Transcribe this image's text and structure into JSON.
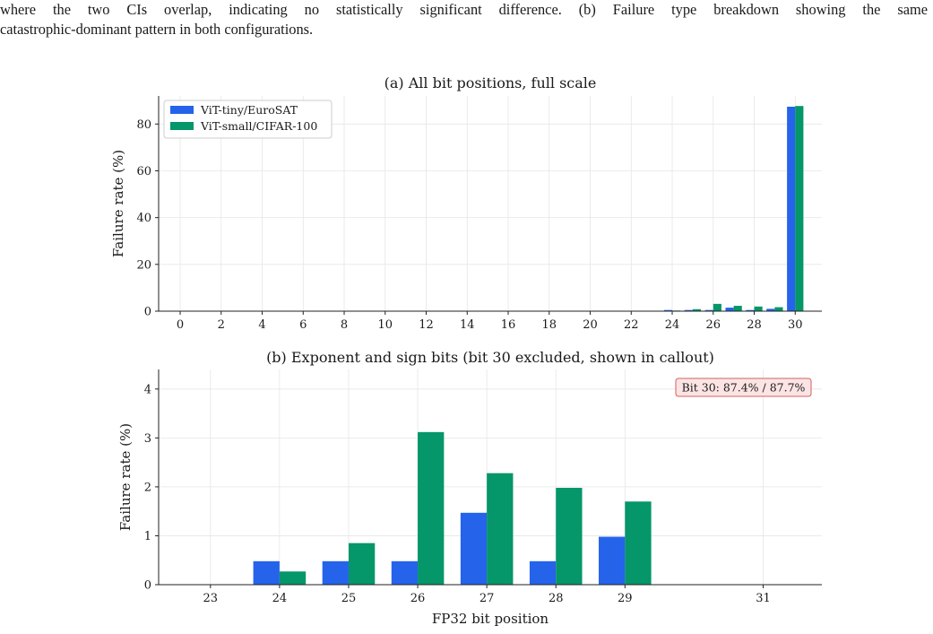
{
  "caption": {
    "line1": "where the two CIs overlap, indicating no statistically significant difference. (b) Failure type breakdown showing the same",
    "line2": "catastrophic-dominant pattern in both configurations."
  },
  "colors": {
    "series1": "#2563eb",
    "series2": "#059669",
    "callout_bg": "#fde4e4",
    "callout_border": "#d06060",
    "grid": "#e6e6e6"
  },
  "chart_data": [
    {
      "type": "bar",
      "title": "(a) All bit positions, full scale",
      "xlabel": "",
      "ylabel": "Failure rate (%)",
      "categories": [
        0,
        1,
        2,
        3,
        4,
        5,
        6,
        7,
        8,
        9,
        10,
        11,
        12,
        13,
        14,
        15,
        16,
        17,
        18,
        19,
        20,
        21,
        22,
        23,
        24,
        25,
        26,
        27,
        28,
        29,
        30
      ],
      "xticks": [
        0,
        2,
        4,
        6,
        8,
        10,
        12,
        14,
        16,
        18,
        20,
        22,
        24,
        26,
        28,
        30
      ],
      "yticks": [
        0,
        20,
        40,
        60,
        80
      ],
      "ylim": [
        0,
        92
      ],
      "grid": true,
      "legend_position": "top-left",
      "series": [
        {
          "name": "ViT-tiny/EuroSAT",
          "color": "#2563eb",
          "values": [
            0,
            0,
            0,
            0,
            0,
            0,
            0,
            0,
            0,
            0,
            0,
            0,
            0,
            0,
            0,
            0,
            0,
            0,
            0,
            0,
            0,
            0,
            0,
            0,
            0.5,
            0.5,
            0.5,
            1.5,
            0.5,
            1.0,
            87.4
          ]
        },
        {
          "name": "ViT-small/CIFAR-100",
          "color": "#059669",
          "values": [
            0,
            0,
            0,
            0,
            0,
            0,
            0,
            0,
            0,
            0,
            0,
            0,
            0,
            0,
            0,
            0,
            0,
            0,
            0,
            0,
            0,
            0,
            0,
            0,
            0.27,
            0.85,
            3.12,
            2.28,
            1.98,
            1.7,
            87.7
          ]
        }
      ]
    },
    {
      "type": "bar",
      "title": "(b) Exponent and sign bits (bit 30 excluded, shown in callout)",
      "xlabel": "FP32 bit position",
      "ylabel": "Failure rate (%)",
      "categories": [
        23,
        24,
        25,
        26,
        27,
        28,
        29,
        31
      ],
      "yticks": [
        0,
        1,
        2,
        3,
        4
      ],
      "ylim": [
        0,
        4.4
      ],
      "grid": true,
      "annotation": "Bit 30: 87.4% / 87.7%",
      "series": [
        {
          "name": "ViT-tiny/EuroSAT",
          "color": "#2563eb",
          "values": [
            0,
            0.48,
            0.48,
            0.48,
            1.47,
            0.48,
            0.98,
            0
          ]
        },
        {
          "name": "ViT-small/CIFAR-100",
          "color": "#059669",
          "values": [
            0,
            0.27,
            0.85,
            3.12,
            2.28,
            1.98,
            1.7,
            0
          ]
        }
      ]
    }
  ]
}
